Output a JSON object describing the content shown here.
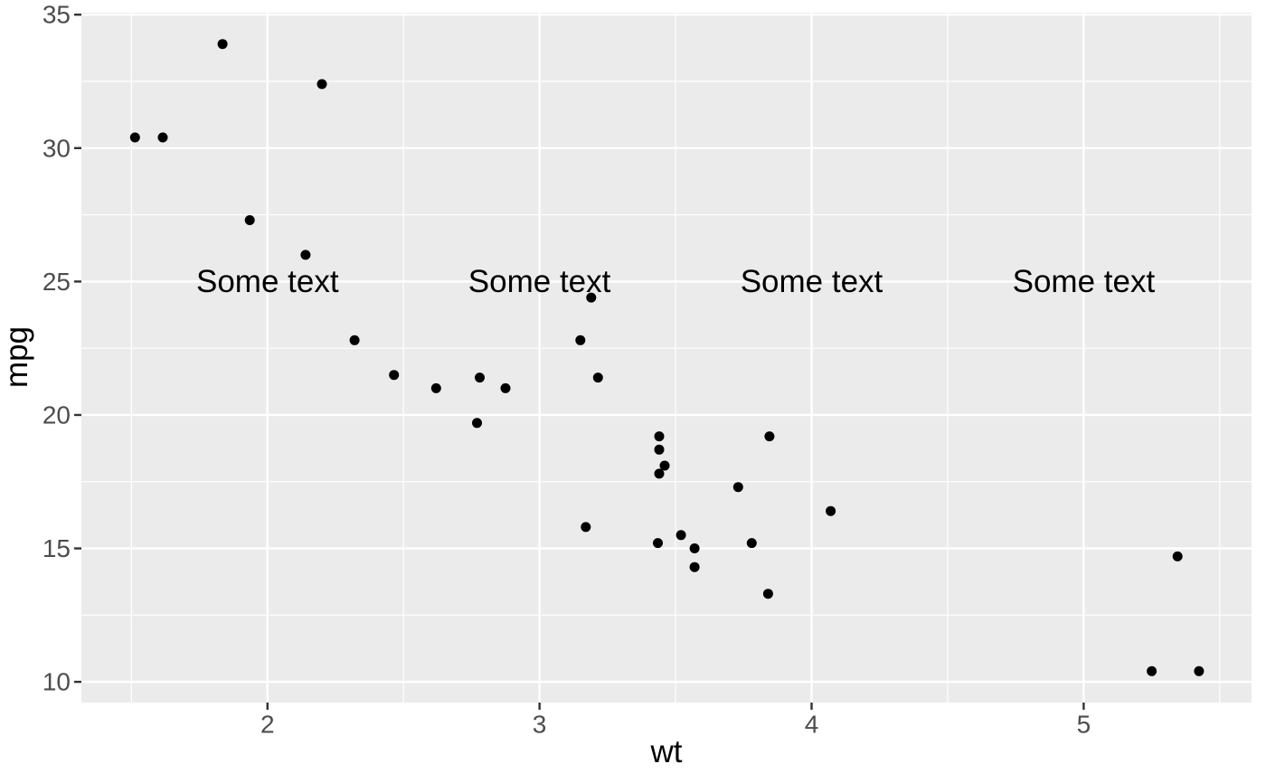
{
  "chart_data": {
    "type": "scatter",
    "title": "",
    "xlabel": "wt",
    "ylabel": "mpg",
    "x_ticks": [
      2,
      3,
      4,
      5
    ],
    "y_ticks": [
      10,
      15,
      20,
      25,
      30,
      35
    ],
    "x_minor_ticks": [
      1.5,
      2.5,
      3.5,
      4.5,
      5.5
    ],
    "y_minor_ticks": [
      12.5,
      17.5,
      22.5,
      27.5,
      32.5
    ],
    "xlim": [
      1.316,
      5.617
    ],
    "ylim": [
      9.225,
      35.075
    ],
    "grid": "major+minor",
    "legend": "none",
    "points": [
      [
        2.62,
        21.0
      ],
      [
        2.875,
        21.0
      ],
      [
        2.32,
        22.8
      ],
      [
        3.215,
        21.4
      ],
      [
        3.44,
        18.7
      ],
      [
        3.46,
        18.1
      ],
      [
        3.57,
        14.3
      ],
      [
        3.19,
        24.4
      ],
      [
        3.15,
        22.8
      ],
      [
        3.44,
        19.2
      ],
      [
        3.44,
        17.8
      ],
      [
        4.07,
        16.4
      ],
      [
        3.73,
        17.3
      ],
      [
        3.78,
        15.2
      ],
      [
        5.25,
        10.4
      ],
      [
        5.424,
        10.4
      ],
      [
        5.345,
        14.7
      ],
      [
        2.2,
        32.4
      ],
      [
        1.615,
        30.4
      ],
      [
        1.835,
        33.9
      ],
      [
        2.465,
        21.5
      ],
      [
        3.52,
        15.5
      ],
      [
        3.435,
        15.2
      ],
      [
        3.84,
        13.3
      ],
      [
        3.845,
        19.2
      ],
      [
        1.935,
        27.3
      ],
      [
        2.14,
        26.0
      ],
      [
        1.513,
        30.4
      ],
      [
        3.17,
        15.8
      ],
      [
        2.77,
        19.7
      ],
      [
        3.57,
        15.0
      ],
      [
        2.78,
        21.4
      ]
    ],
    "annotations": [
      {
        "text": "Some text",
        "x": 2,
        "y": 25
      },
      {
        "text": "Some text",
        "x": 3,
        "y": 25
      },
      {
        "text": "Some text",
        "x": 4,
        "y": 25
      },
      {
        "text": "Some text",
        "x": 5,
        "y": 25
      }
    ]
  },
  "style": {
    "background": "#FFFFFF",
    "panel_bg": "#EBEBEB",
    "grid_color": "#FFFFFF",
    "point_color": "#000000",
    "tick_label_color": "#4D4D4D",
    "tick_mark_color": "#333333",
    "axis_title_color": "#000000",
    "annotation_color": "#000000"
  }
}
